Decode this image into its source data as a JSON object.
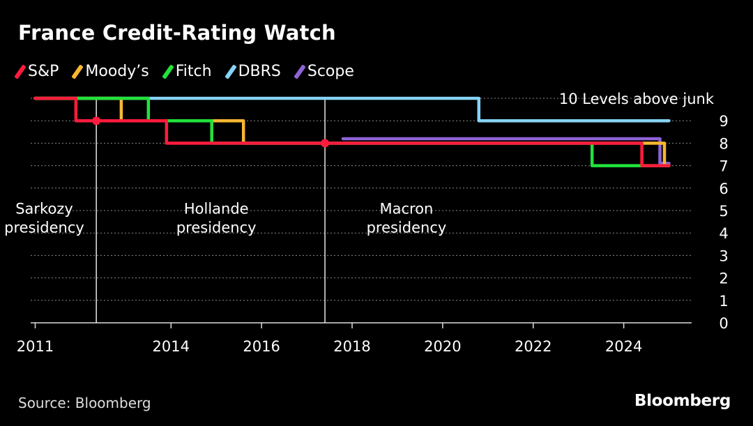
{
  "title": "France Credit-Rating Watch",
  "source": "Source: Bloomberg",
  "brand": "Bloomberg",
  "legend": [
    {
      "name": "S&P",
      "color": "#ff1b3d"
    },
    {
      "name": "Moody’s",
      "color": "#f7b731"
    },
    {
      "name": "Fitch",
      "color": "#22e23c"
    },
    {
      "name": "DBRS",
      "color": "#86d3f7"
    },
    {
      "name": "Scope",
      "color": "#8e63d6"
    }
  ],
  "chart_data": {
    "type": "line",
    "step": true,
    "xlim": [
      2010.9,
      2025.5
    ],
    "ylim": [
      0,
      10
    ],
    "x_ticks": [
      2011,
      2014,
      2016,
      2018,
      2020,
      2022,
      2024
    ],
    "y_ticks": [
      0,
      1,
      2,
      3,
      4,
      5,
      6,
      7,
      8,
      9
    ],
    "top_annotation": "10 Levels above junk",
    "grid": "horizontal-dotted",
    "series": [
      {
        "name": "DBRS",
        "color": "#86d3f7",
        "points": [
          [
            2011.0,
            10
          ],
          [
            2020.8,
            10
          ],
          [
            2020.8,
            9
          ],
          [
            2025.0,
            9
          ]
        ]
      },
      {
        "name": "Scope",
        "color": "#8e63d6",
        "points": [
          [
            2017.8,
            8.2
          ],
          [
            2024.8,
            8.2
          ],
          [
            2024.8,
            7.1
          ],
          [
            2025.0,
            7.1
          ]
        ]
      },
      {
        "name": "Moody's",
        "color": "#f7b731",
        "points": [
          [
            2011.0,
            10
          ],
          [
            2012.9,
            10
          ],
          [
            2012.9,
            9
          ],
          [
            2015.6,
            9
          ],
          [
            2015.6,
            8
          ],
          [
            2024.9,
            8
          ],
          [
            2024.9,
            7
          ],
          [
            2025.0,
            7
          ]
        ]
      },
      {
        "name": "Fitch",
        "color": "#22e23c",
        "points": [
          [
            2011.0,
            10
          ],
          [
            2013.5,
            10
          ],
          [
            2013.5,
            9
          ],
          [
            2014.9,
            9
          ],
          [
            2014.9,
            8
          ],
          [
            2023.3,
            8
          ],
          [
            2023.3,
            7
          ],
          [
            2025.0,
            7
          ]
        ]
      },
      {
        "name": "S&P",
        "color": "#ff1b3d",
        "points": [
          [
            2011.0,
            10
          ],
          [
            2011.9,
            10
          ],
          [
            2011.9,
            9
          ],
          [
            2013.9,
            9
          ],
          [
            2013.9,
            8
          ],
          [
            2024.4,
            8
          ],
          [
            2024.4,
            7
          ],
          [
            2025.0,
            7
          ]
        ]
      }
    ],
    "vertical_markers": [
      {
        "x": 2012.35,
        "y": 9,
        "color": "#ff1b3d"
      },
      {
        "x": 2017.4,
        "y": 8,
        "color": "#ff1b3d"
      }
    ],
    "annotations": [
      {
        "lines": [
          "Sarkozy",
          "presidency"
        ],
        "x": 2011.2,
        "y": 4.8
      },
      {
        "lines": [
          "Hollande",
          "presidency"
        ],
        "x": 2015.0,
        "y": 4.8
      },
      {
        "lines": [
          "Macron",
          "presidency"
        ],
        "x": 2019.2,
        "y": 4.8
      }
    ]
  }
}
